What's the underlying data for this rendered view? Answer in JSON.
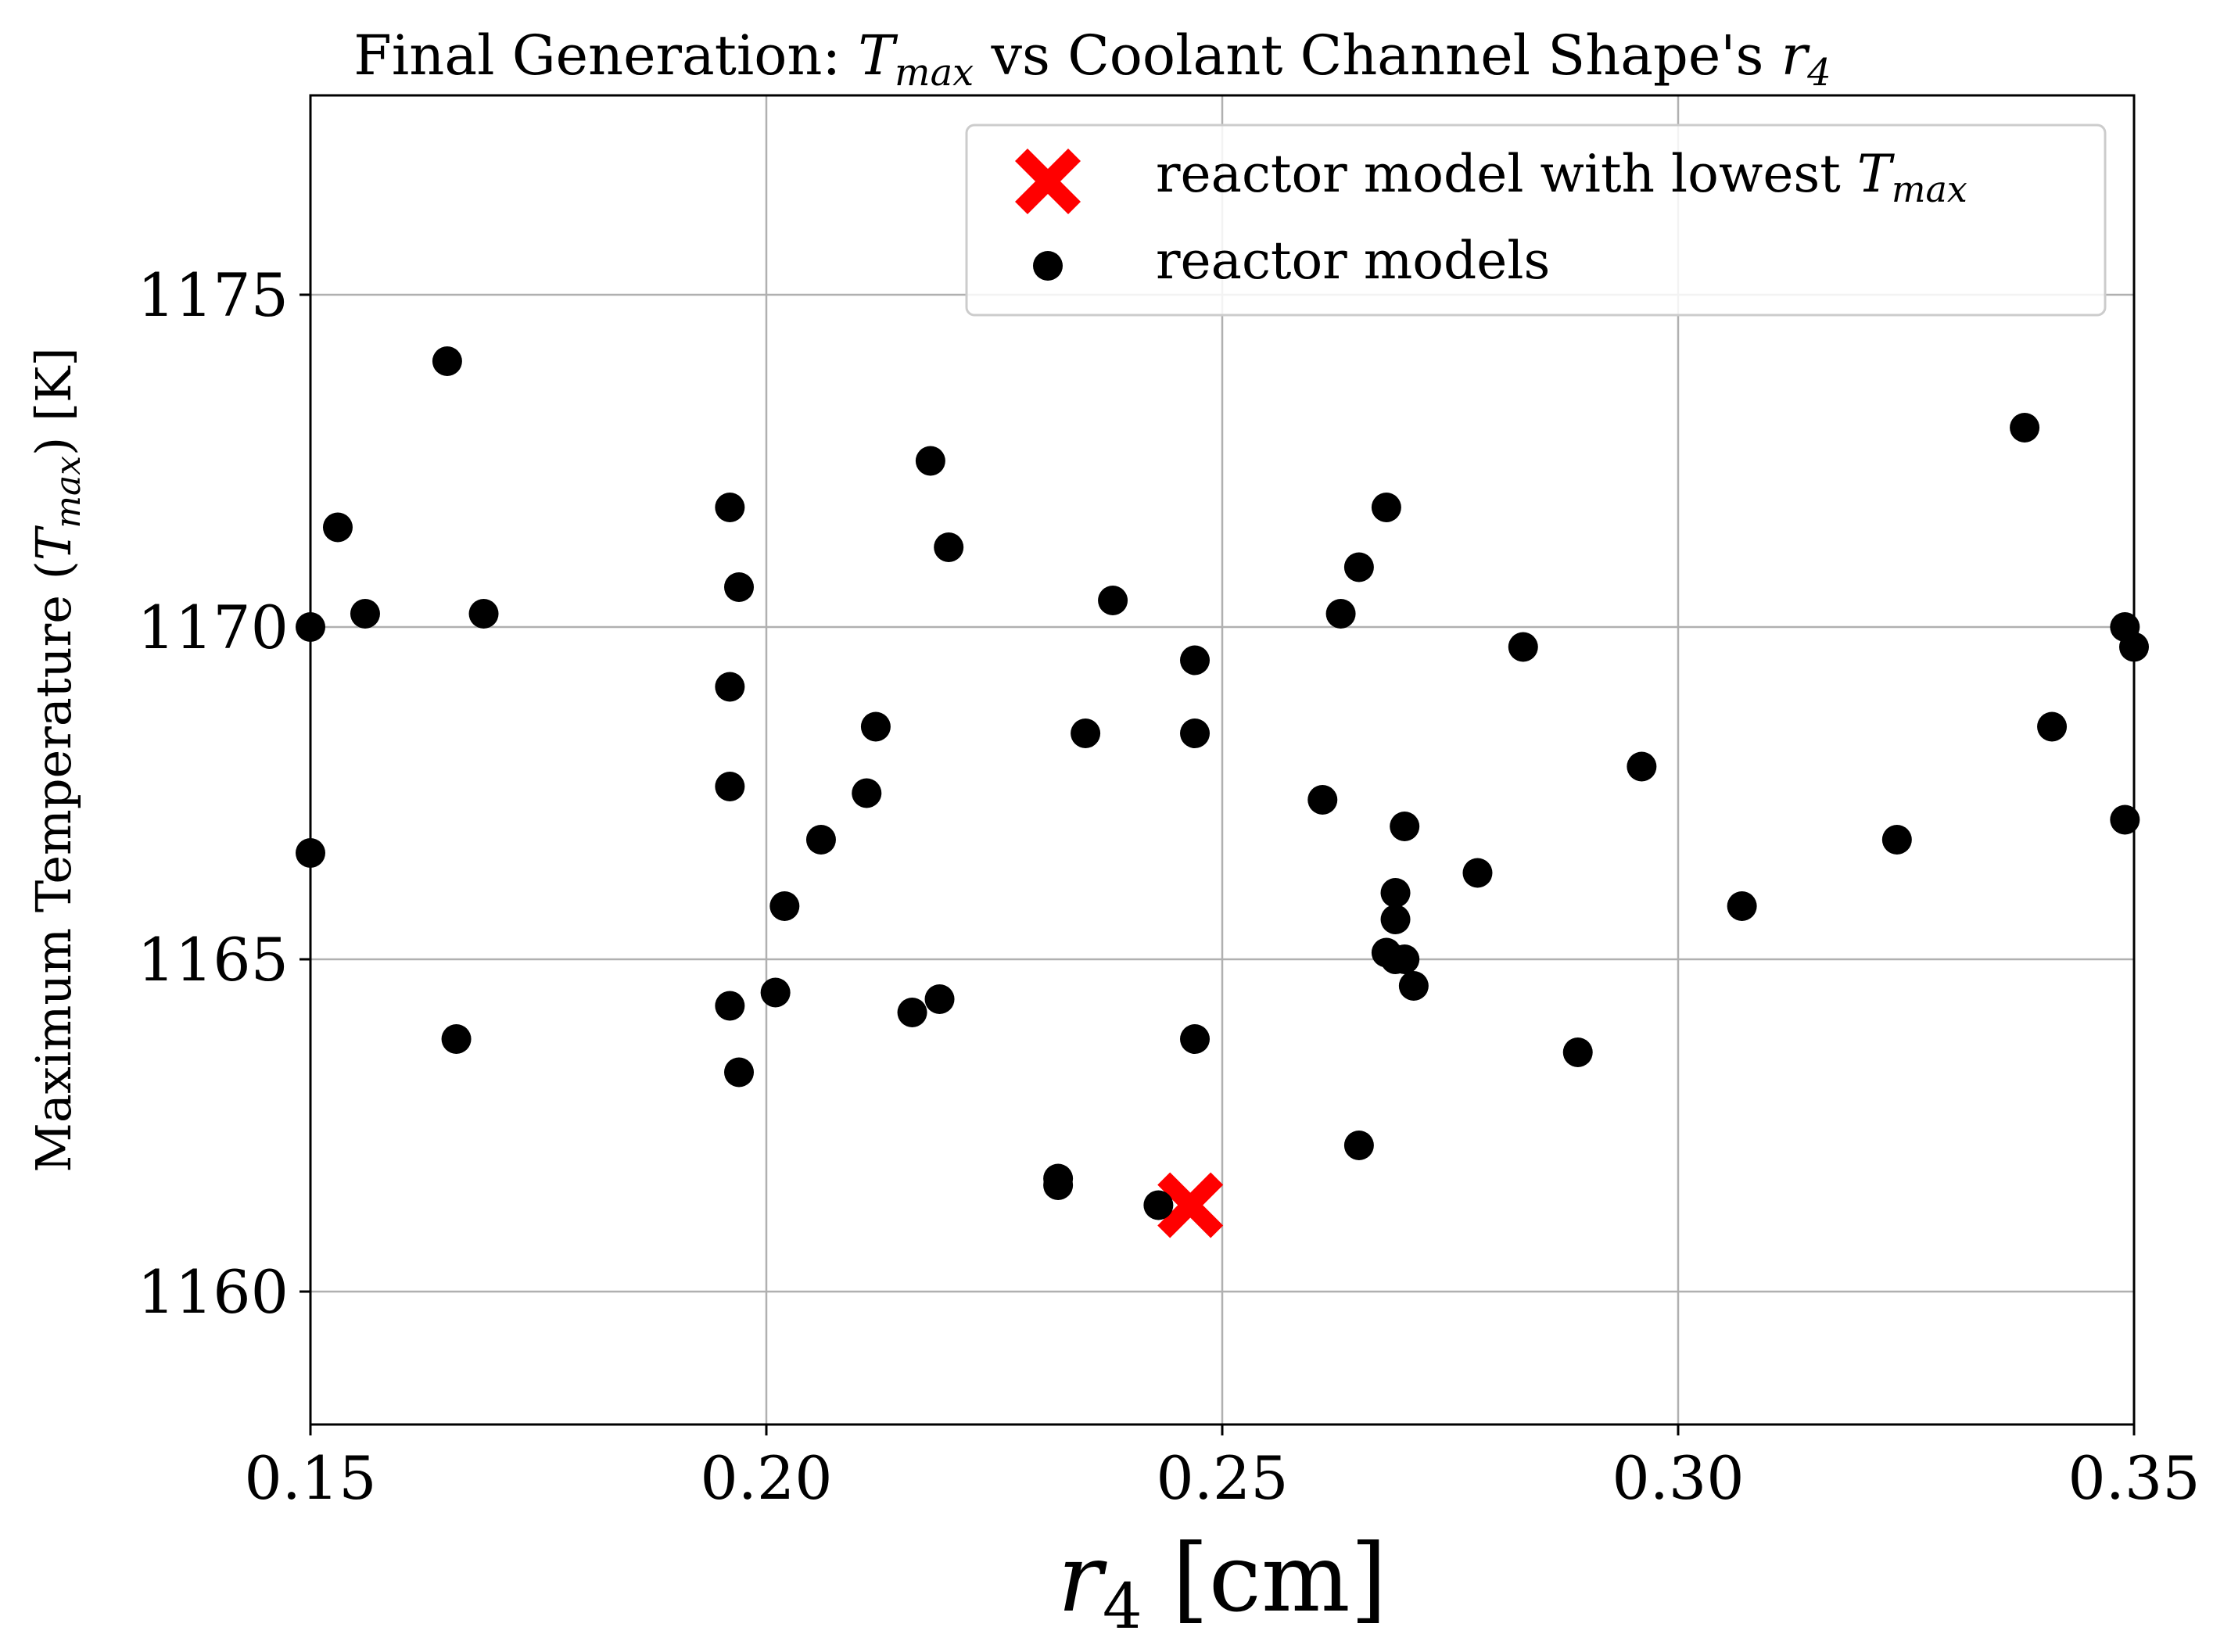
{
  "chart_data": {
    "type": "scatter",
    "title": {
      "prefix": "Final Generation: ",
      "t_symbol": "T",
      "t_subscript": "max",
      "middle": " vs Coolant Channel Shape's ",
      "r_symbol": "r",
      "r_subscript": "4"
    },
    "xlabel": {
      "symbol": "r",
      "subscript": "4",
      "unit": " [cm]"
    },
    "ylabel": {
      "prefix": "Maximum Temperature (",
      "symbol": "T",
      "subscript": "max",
      "suffix": ") [K]"
    },
    "xlim": [
      0.15,
      0.35
    ],
    "ylim": [
      1158,
      1178
    ],
    "xticks": [
      "0.15",
      "0.20",
      "0.25",
      "0.30",
      "0.35"
    ],
    "xtick_values": [
      0.15,
      0.2,
      0.25,
      0.3,
      0.35
    ],
    "yticks": [
      "1160",
      "1165",
      "1170",
      "1175"
    ],
    "ytick_values": [
      1160,
      1165,
      1170,
      1175
    ],
    "grid": true,
    "legend_position": "top-right",
    "series": [
      {
        "name": "reactor models",
        "marker": "circle",
        "color": "#000000",
        "x": [
          0.15,
          0.15,
          0.153,
          0.156,
          0.165,
          0.166,
          0.169,
          0.196,
          0.196,
          0.196,
          0.196,
          0.197,
          0.197,
          0.201,
          0.202,
          0.206,
          0.211,
          0.212,
          0.216,
          0.218,
          0.219,
          0.22,
          0.232,
          0.232,
          0.235,
          0.238,
          0.243,
          0.247,
          0.247,
          0.247,
          0.261,
          0.263,
          0.265,
          0.265,
          0.268,
          0.268,
          0.269,
          0.269,
          0.269,
          0.27,
          0.27,
          0.271,
          0.278,
          0.283,
          0.289,
          0.296,
          0.307,
          0.324,
          0.338,
          0.341,
          0.349,
          0.349,
          0.35
        ],
        "y": [
          1166.6,
          1170.0,
          1171.5,
          1170.2,
          1174.0,
          1163.8,
          1170.2,
          1171.8,
          1167.6,
          1164.3,
          1169.1,
          1163.3,
          1170.6,
          1164.5,
          1165.8,
          1166.8,
          1167.5,
          1168.5,
          1164.2,
          1172.5,
          1164.4,
          1171.2,
          1161.7,
          1161.6,
          1168.4,
          1170.4,
          1161.3,
          1163.8,
          1168.4,
          1169.5,
          1167.4,
          1170.2,
          1170.9,
          1162.2,
          1165.1,
          1171.8,
          1166.0,
          1165.6,
          1165.0,
          1167.0,
          1165.0,
          1164.6,
          1166.3,
          1169.7,
          1163.6,
          1167.9,
          1165.8,
          1166.8,
          1173.0,
          1168.5,
          1167.1,
          1170.0,
          1169.7
        ]
      },
      {
        "name": "reactor model with lowest T_max",
        "marker": "x",
        "color": "#ff0000",
        "x": [
          0.2465
        ],
        "y": [
          1161.3
        ]
      }
    ],
    "legend": [
      {
        "marker": "x",
        "color": "#ff0000",
        "label_prefix": "reactor model with lowest ",
        "symbol": "T",
        "subscript": "max"
      },
      {
        "marker": "circle",
        "color": "#000000",
        "label": "reactor models"
      }
    ]
  }
}
